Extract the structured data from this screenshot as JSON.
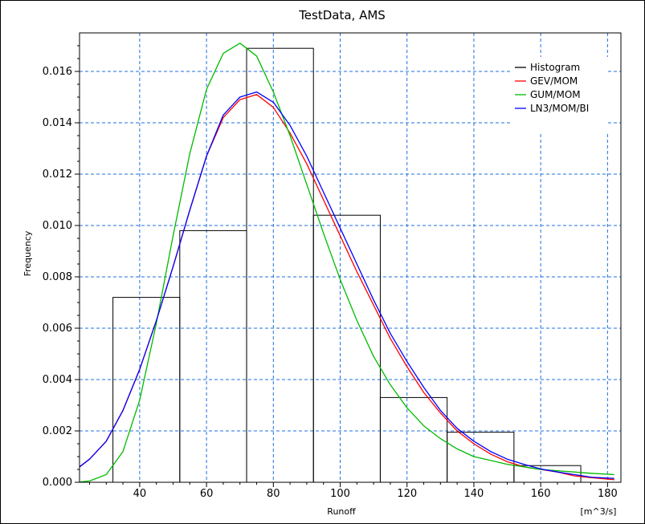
{
  "chart_data": {
    "type": "histogram+line",
    "title": "TestData, AMS",
    "xlabel": "Runoff",
    "xunit": "[m^3/s]",
    "ylabel": "Frequency",
    "xlim": [
      22,
      184
    ],
    "ylim": [
      0,
      0.0175
    ],
    "xticks": [
      40,
      60,
      80,
      100,
      120,
      140,
      160,
      180
    ],
    "yticks": [
      "0.000",
      "0.002",
      "0.004",
      "0.006",
      "0.008",
      "0.010",
      "0.012",
      "0.014",
      "0.016"
    ],
    "grid": true,
    "legend_position": "top-right",
    "histogram": {
      "name": "Histogram",
      "color": "#000000",
      "bins": [
        {
          "x0": 32,
          "x1": 52,
          "value": 0.0072
        },
        {
          "x0": 52,
          "x1": 72,
          "value": 0.0098
        },
        {
          "x0": 72,
          "x1": 92,
          "value": 0.0169
        },
        {
          "x0": 92,
          "x1": 112,
          "value": 0.0104
        },
        {
          "x0": 112,
          "x1": 132,
          "value": 0.0033
        },
        {
          "x0": 132,
          "x1": 152,
          "value": 0.00195
        },
        {
          "x0": 152,
          "x1": 172,
          "value": 0.00065
        }
      ]
    },
    "series": [
      {
        "name": "GEV/MOM",
        "color": "#ff0000",
        "x": [
          22,
          25,
          30,
          35,
          40,
          45,
          50,
          55,
          60,
          65,
          70,
          75,
          80,
          85,
          90,
          95,
          100,
          105,
          110,
          115,
          120,
          125,
          130,
          135,
          140,
          145,
          150,
          155,
          160,
          165,
          170,
          175,
          182
        ],
        "y": [
          0.0006,
          0.0009,
          0.0016,
          0.0028,
          0.0044,
          0.0063,
          0.0084,
          0.0106,
          0.0127,
          0.0142,
          0.0149,
          0.0151,
          0.0146,
          0.0136,
          0.0124,
          0.011,
          0.0096,
          0.0082,
          0.0069,
          0.0056,
          0.0045,
          0.0035,
          0.0027,
          0.002,
          0.0015,
          0.0011,
          0.0008,
          0.0006,
          0.0005,
          0.0004,
          0.00025,
          0.00018,
          0.0001
        ]
      },
      {
        "name": "GUM/MOM",
        "color": "#00bb00",
        "x": [
          22,
          25,
          30,
          35,
          40,
          45,
          50,
          55,
          60,
          65,
          70,
          75,
          80,
          85,
          90,
          95,
          100,
          105,
          110,
          115,
          120,
          125,
          130,
          135,
          140,
          145,
          150,
          155,
          160,
          165,
          170,
          175,
          182
        ],
        "y": [
          1e-05,
          5e-05,
          0.0003,
          0.0012,
          0.0032,
          0.0062,
          0.0096,
          0.0128,
          0.0153,
          0.0167,
          0.0171,
          0.0166,
          0.0152,
          0.0135,
          0.0116,
          0.0097,
          0.0079,
          0.0063,
          0.0049,
          0.0038,
          0.0029,
          0.0022,
          0.0017,
          0.0013,
          0.001,
          0.00085,
          0.0007,
          0.0006,
          0.0005,
          0.00045,
          0.0004,
          0.00035,
          0.0003
        ]
      },
      {
        "name": "LN3/MOM/BI",
        "color": "#0000ff",
        "x": [
          22,
          25,
          30,
          35,
          40,
          45,
          50,
          55,
          60,
          65,
          70,
          75,
          80,
          85,
          90,
          95,
          100,
          105,
          110,
          115,
          120,
          125,
          130,
          135,
          140,
          145,
          150,
          155,
          160,
          165,
          170,
          175,
          182
        ],
        "y": [
          0.0006,
          0.0009,
          0.0016,
          0.0028,
          0.0044,
          0.0063,
          0.0084,
          0.0106,
          0.0127,
          0.0143,
          0.015,
          0.0152,
          0.0148,
          0.0139,
          0.0127,
          0.0113,
          0.0099,
          0.0085,
          0.0071,
          0.0058,
          0.0047,
          0.0037,
          0.0028,
          0.0021,
          0.0016,
          0.0012,
          0.0009,
          0.0007,
          0.00052,
          0.0004,
          0.0003,
          0.0002,
          0.00015
        ]
      }
    ]
  }
}
